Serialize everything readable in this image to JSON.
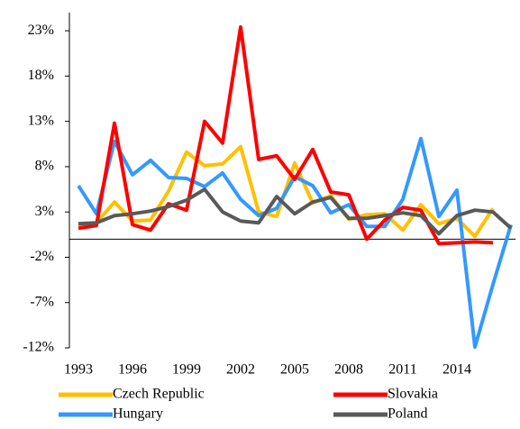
{
  "chart_data": {
    "type": "line",
    "categories": [
      "1993",
      null,
      null,
      "1996",
      null,
      null,
      "1999",
      null,
      null,
      "2002",
      null,
      null,
      "2005",
      null,
      null,
      "2008",
      null,
      null,
      "2011",
      null,
      null,
      "2014",
      null,
      null,
      null
    ],
    "series": [
      {
        "name": "Czech Republic",
        "color": "#FFC000",
        "values": [
          1.5,
          1.8,
          4.1,
          2.0,
          2.1,
          5.3,
          9.6,
          8.1,
          8.3,
          10.2,
          3.0,
          2.5,
          8.4,
          4.0,
          4.8,
          2.2,
          2.7,
          2.8,
          1.0,
          3.8,
          1.7,
          2.3,
          0.3,
          3.4,
          null
        ]
      },
      {
        "name": "Slovakia",
        "color": "#FF0000",
        "values": [
          1.2,
          1.5,
          12.8,
          1.6,
          1.0,
          3.9,
          3.2,
          13.0,
          10.6,
          23.4,
          8.8,
          9.2,
          6.6,
          9.9,
          5.2,
          4.9,
          0.0,
          2.1,
          3.5,
          3.2,
          -0.5,
          -0.4,
          -0.3,
          -0.4,
          null
        ]
      },
      {
        "name": "Hungary",
        "color": "#3399FF",
        "values": [
          5.9,
          2.8,
          10.8,
          7.1,
          8.7,
          6.8,
          6.7,
          5.8,
          7.3,
          4.4,
          2.6,
          3.4,
          6.9,
          5.9,
          2.9,
          3.8,
          1.4,
          1.4,
          4.4,
          11.1,
          2.5,
          5.4,
          -11.9,
          -5.0,
          1.6
        ]
      },
      {
        "name": "Poland",
        "color": "#595959",
        "values": [
          1.7,
          1.8,
          2.6,
          2.8,
          3.1,
          3.6,
          4.3,
          5.5,
          3.0,
          2.0,
          1.8,
          4.7,
          2.8,
          4.1,
          4.6,
          2.3,
          2.3,
          2.6,
          2.9,
          2.6,
          0.6,
          2.6,
          3.2,
          3.0,
          1.2
        ]
      }
    ],
    "ylim": [
      -12,
      25
    ],
    "yticks": [
      {
        "value": -12,
        "label": "-12%"
      },
      {
        "value": -7,
        "label": "-7%"
      },
      {
        "value": -2,
        "label": "-2%"
      },
      {
        "value": 3,
        "label": "3%"
      },
      {
        "value": 8,
        "label": "8%"
      },
      {
        "value": 13,
        "label": "13%"
      },
      {
        "value": 18,
        "label": "18%"
      },
      {
        "value": 23,
        "label": "23%"
      }
    ]
  }
}
